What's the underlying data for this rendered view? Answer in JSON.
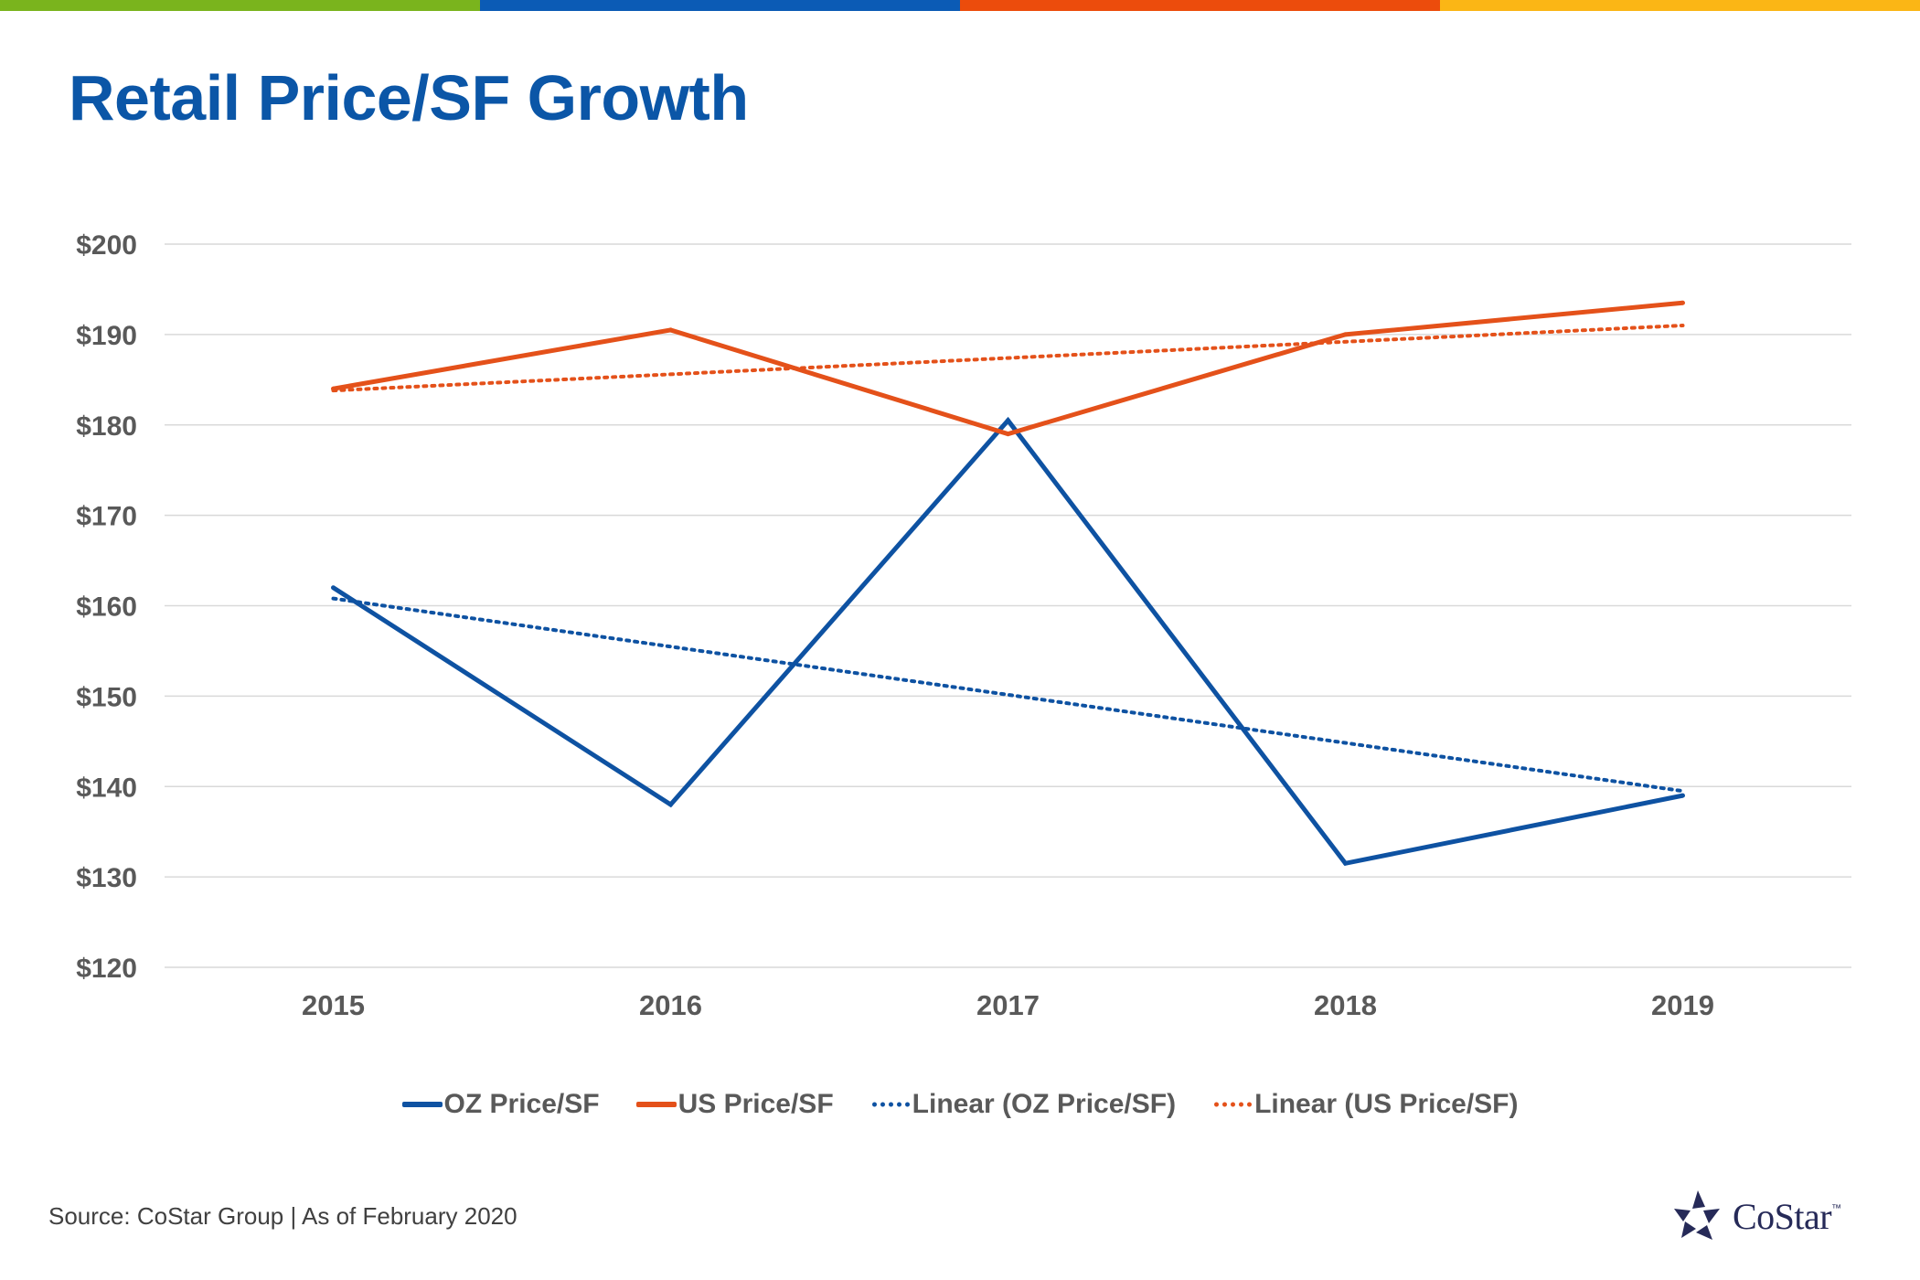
{
  "title": "Retail Price/SF Growth",
  "source_note": "Source: CoStar Group | As of February 2020",
  "logo": {
    "text": "CoStar",
    "tm": "™"
  },
  "colors": {
    "stripe": [
      "#7ab41d",
      "#0b5bb5",
      "#ec4c0c",
      "#fbb615"
    ],
    "title": "#0b56a7",
    "oz": "#0e52a2",
    "us": "#e4511a",
    "grid": "#d9d9d9",
    "label": "#595959",
    "logo": "#262a58"
  },
  "chart_data": {
    "type": "line",
    "title": "Retail Price/SF Growth",
    "xlabel": "",
    "ylabel": "",
    "categories": [
      "2015",
      "2016",
      "2017",
      "2018",
      "2019"
    ],
    "ylim": [
      120,
      200
    ],
    "ytick_step": 10,
    "ytick_labels": [
      "$120",
      "$130",
      "$140",
      "$150",
      "$160",
      "$170",
      "$180",
      "$190",
      "$200"
    ],
    "grid": true,
    "legend_position": "bottom",
    "series": [
      {
        "name": "OZ Price/SF",
        "values": [
          162,
          138,
          180.5,
          131.5,
          139
        ],
        "color": "#0e52a2",
        "style": "solid"
      },
      {
        "name": "US Price/SF",
        "values": [
          184,
          190.5,
          179,
          190,
          193.5
        ],
        "color": "#e4511a",
        "style": "solid"
      }
    ],
    "trendlines": [
      {
        "name": "Linear (OZ Price/SF)",
        "start": 160.8,
        "end": 139.5,
        "color": "#0e52a2",
        "style": "dotted"
      },
      {
        "name": "Linear (US Price/SF)",
        "start": 183.8,
        "end": 191,
        "color": "#e4511a",
        "style": "dotted"
      }
    ]
  }
}
